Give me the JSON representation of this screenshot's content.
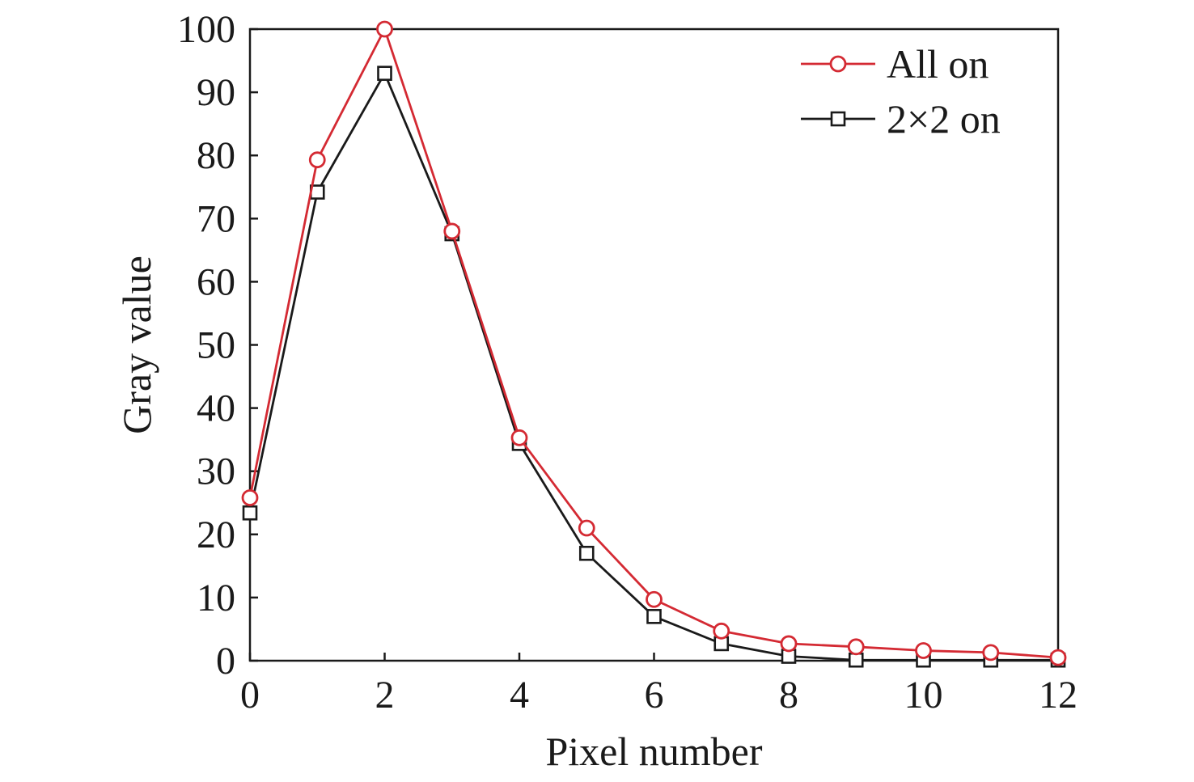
{
  "chart_data": {
    "type": "line",
    "xlabel": "Pixel number",
    "ylabel": "Gray value",
    "xlim": [
      0,
      12
    ],
    "ylim": [
      0,
      100
    ],
    "xticks": [
      0,
      2,
      4,
      6,
      8,
      10,
      12
    ],
    "yticks": [
      0,
      10,
      20,
      30,
      40,
      50,
      60,
      70,
      80,
      90,
      100
    ],
    "grid": false,
    "legend_position": "top-right",
    "x": [
      0,
      1,
      2,
      3,
      4,
      5,
      6,
      7,
      8,
      9,
      10,
      11,
      12
    ],
    "series": [
      {
        "name": "All on",
        "color": "#d42a33",
        "marker": "circle",
        "values": [
          25.8,
          79.3,
          100,
          68.0,
          35.3,
          21.0,
          9.7,
          4.7,
          2.7,
          2.2,
          1.6,
          1.3,
          0.5
        ]
      },
      {
        "name": "2×2 on",
        "color": "#1a1a1a",
        "marker": "square",
        "values": [
          23.4,
          74.2,
          93.0,
          67.6,
          34.4,
          17.0,
          7.0,
          2.7,
          0.7,
          0.1,
          0.1,
          0.1,
          0.1
        ]
      }
    ]
  }
}
